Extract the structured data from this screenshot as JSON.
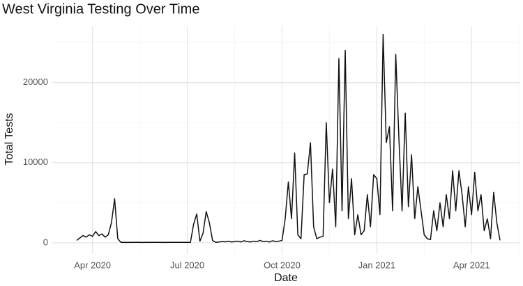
{
  "chart_data": {
    "type": "line",
    "title": "West Virginia Testing Over Time",
    "x_label": "Date",
    "y_label": "Total Tests",
    "categories": [
      null,
      null,
      null,
      null,
      null,
      "Apr 2020",
      null,
      null,
      null,
      null,
      null,
      null,
      null,
      null,
      null,
      null,
      null,
      null,
      null,
      null,
      null,
      null,
      null,
      null,
      null,
      null,
      null,
      null,
      null,
      null,
      null,
      null,
      null,
      null,
      null,
      "Jul 2020",
      null,
      null,
      null,
      null,
      null,
      null,
      null,
      null,
      null,
      null,
      null,
      null,
      null,
      null,
      null,
      null,
      null,
      null,
      null,
      null,
      null,
      null,
      null,
      null,
      null,
      null,
      null,
      null,
      null,
      "Oct 2020",
      null,
      null,
      null,
      null,
      null,
      null,
      null,
      null,
      null,
      null,
      null,
      null,
      null,
      null,
      null,
      null,
      null,
      null,
      null,
      null,
      null,
      null,
      null,
      null,
      null,
      null,
      null,
      null,
      null,
      "Jan 2021",
      null,
      null,
      null,
      null,
      null,
      null,
      null,
      null,
      null,
      null,
      null,
      null,
      null,
      null,
      null,
      null,
      null,
      null,
      null,
      null,
      null,
      null,
      null,
      null,
      null,
      null,
      null,
      null,
      null,
      "Apr 2021",
      null,
      null,
      null,
      null,
      null,
      null,
      null,
      null,
      null
    ],
    "values": [
      300,
      600,
      900,
      700,
      1000,
      800,
      1400,
      900,
      1100,
      700,
      1000,
      2500,
      5500,
      500,
      50,
      50,
      40,
      50,
      50,
      60,
      50,
      40,
      50,
      50,
      50,
      60,
      50,
      50,
      40,
      50,
      50,
      50,
      60,
      50,
      50,
      50,
      50,
      2300,
      3600,
      200,
      1200,
      3900,
      2500,
      300,
      50,
      100,
      150,
      120,
      200,
      100,
      150,
      200,
      100,
      250,
      150,
      100,
      200,
      150,
      300,
      150,
      200,
      100,
      250,
      150,
      200,
      300,
      3000,
      7600,
      3000,
      11200,
      1000,
      500,
      8500,
      8600,
      12500,
      2000,
      500,
      700,
      800,
      15000,
      5000,
      9200,
      2000,
      23000,
      4000,
      24000,
      3000,
      8000,
      1000,
      3500,
      1000,
      1500,
      6000,
      2000,
      8500,
      8000,
      3500,
      26000,
      12500,
      14500,
      4000,
      23500,
      13000,
      4000,
      16200,
      4500,
      11000,
      3000,
      7000,
      4000,
      1000,
      500,
      400,
      4000,
      1500,
      5000,
      2000,
      6000,
      3000,
      9000,
      4000,
      9000,
      6000,
      2000,
      7000,
      3500,
      8800,
      4000,
      6000,
      1500,
      3000,
      500,
      6300,
      2500,
      300
    ],
    "color": "#111111",
    "ylim": [
      -1400,
      27000
    ],
    "yticks": [
      0,
      10000,
      20000
    ],
    "grid": true
  }
}
